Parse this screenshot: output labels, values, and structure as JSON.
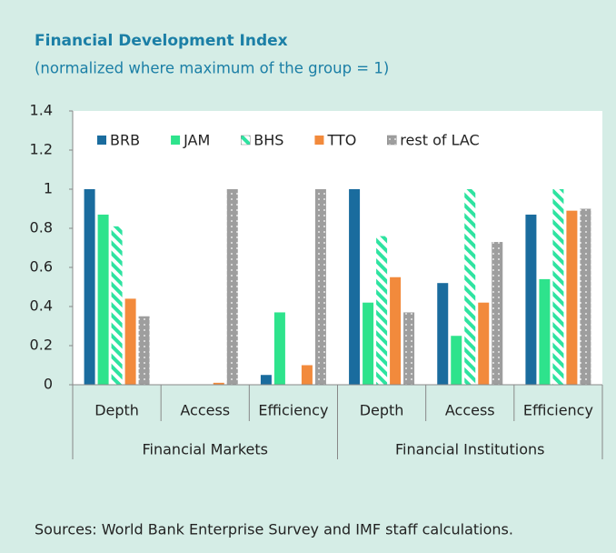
{
  "chart_data": {
    "type": "bar",
    "title": "Financial Development Index",
    "subtitle": "(normalized where maximum of the group = 1)",
    "source": "Sources: World Bank Enterprise Survey and IMF staff calculations.",
    "groups": [
      {
        "label": "Financial Markets",
        "categories": [
          "Depth",
          "Access",
          "Efficiency"
        ]
      },
      {
        "label": "Financial Institutions",
        "categories": [
          "Depth",
          "Access",
          "Efficiency"
        ]
      }
    ],
    "series": [
      {
        "name": "BRB",
        "color": "#1a6c9e",
        "values": [
          1.0,
          0,
          0.05,
          1.0,
          0.52,
          0.87
        ]
      },
      {
        "name": "JAM",
        "color": "#2ee38c",
        "values": [
          0.87,
          0,
          0.37,
          0.42,
          0.25,
          0.54
        ]
      },
      {
        "name": "BHS",
        "color": "#2ee3a0",
        "pattern": "stripes",
        "values": [
          0.81,
          0,
          0,
          0.76,
          1.0,
          1.0
        ]
      },
      {
        "name": "TTO",
        "color": "#f28a3c",
        "values": [
          0.44,
          0.01,
          0.1,
          0.55,
          0.42,
          0.89
        ]
      },
      {
        "name": "rest of LAC",
        "color": "#9e9e9e",
        "pattern": "dots",
        "values": [
          0.35,
          1.0,
          1.0,
          0.37,
          0.73,
          0.9
        ]
      }
    ],
    "ylim": [
      0,
      1.4
    ],
    "yticks": [
      0,
      0.2,
      0.4,
      0.6,
      0.8,
      1,
      1.2,
      1.4
    ],
    "legend": "top"
  }
}
